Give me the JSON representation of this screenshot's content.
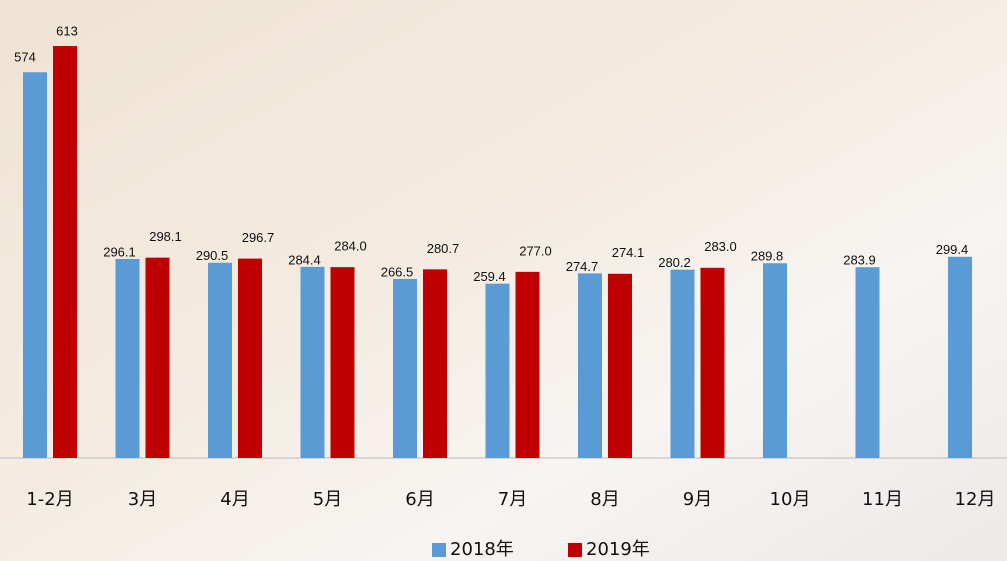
{
  "chart_data": {
    "type": "bar",
    "categories": [
      "1-2月",
      "3月",
      "4月",
      "5月",
      "6月",
      "7月",
      "8月",
      "9月",
      "10月",
      "11月",
      "12月"
    ],
    "series": [
      {
        "name": "2018年",
        "color": "#5b9bd5",
        "values": [
          574,
          296.1,
          290.5,
          284.4,
          266.5,
          259.4,
          274.7,
          280.2,
          289.8,
          283.9,
          299.4
        ],
        "value_labels": [
          "574",
          "296.1",
          "290.5",
          "284.4",
          "266.5",
          "259.4",
          "274.7",
          "280.2",
          "289.8",
          "283.9",
          "299.4"
        ]
      },
      {
        "name": "2019年",
        "color": "#c00000",
        "values": [
          613,
          298.1,
          296.7,
          284.0,
          280.7,
          277.0,
          274.1,
          283.0,
          null,
          null,
          null
        ],
        "value_labels": [
          "613",
          "298.1",
          "296.7",
          "284.0",
          "280.7",
          "277.0",
          "274.1",
          "283.0",
          null,
          null,
          null
        ]
      }
    ],
    "ylim": [
      0,
      680
    ],
    "legend": "bottom"
  }
}
